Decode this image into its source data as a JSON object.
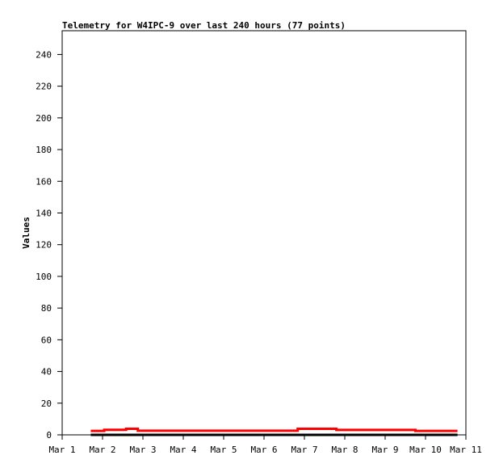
{
  "chart_data": {
    "type": "line",
    "title": "Telemetry for W4IPC-9 over last 240 hours (77 points)",
    "xlabel": "",
    "ylabel": "Values",
    "x_ticks": [
      "Mar 1",
      "Mar 2",
      "Mar 3",
      "Mar 4",
      "Mar 5",
      "Mar 6",
      "Mar 7",
      "Mar 8",
      "Mar 9",
      "Mar 10",
      "Mar 11"
    ],
    "y_ticks": [
      0,
      20,
      40,
      60,
      80,
      100,
      120,
      140,
      160,
      180,
      200,
      220,
      240
    ],
    "xlim": [
      "Mar 1 00:00",
      "Mar 11 00:00"
    ],
    "ylim": [
      0,
      255
    ],
    "grid": false,
    "line_style": "step",
    "series": [
      {
        "color": "#ff0000",
        "points": [
          [
            "Mar 1 17:00",
            2.5
          ],
          [
            "Mar 2 01:00",
            3.2
          ],
          [
            "Mar 2 14:00",
            3.8
          ],
          [
            "Mar 2 21:00",
            2.6
          ],
          [
            "Mar 6 20:00",
            3.8
          ],
          [
            "Mar 7 19:00",
            3.1
          ],
          [
            "Mar 9 18:00",
            2.5
          ],
          [
            "Mar 10 19:00",
            2.5
          ]
        ]
      },
      {
        "color": "#000000",
        "points": [
          [
            "Mar 1 17:00",
            0
          ],
          [
            "Mar 10 19:00",
            0
          ]
        ]
      }
    ]
  }
}
